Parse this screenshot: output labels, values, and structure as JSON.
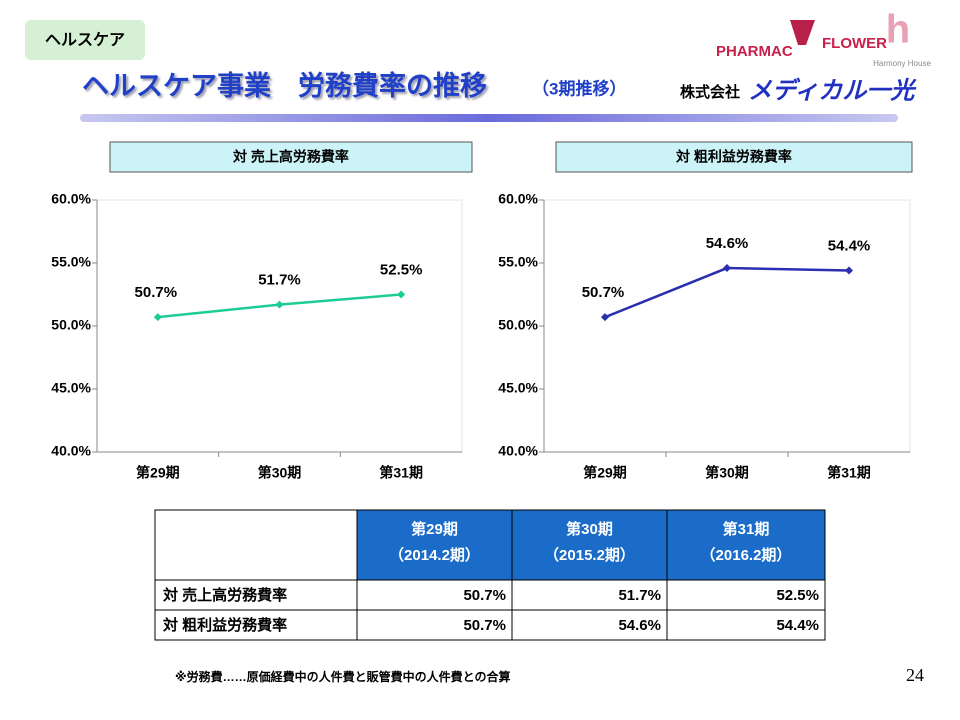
{
  "tag": "ヘルスケア",
  "title": "ヘルスケア事業　労務費率の推移",
  "title_sub": "（3期推移）",
  "logos": {
    "pharmac": "PHARMAC",
    "flower": "FLOWER",
    "harmony": "Harmony House",
    "company_prefix": "株式会社",
    "company_name": "メディカル一光"
  },
  "chart_data": [
    {
      "type": "line",
      "title": "対 売上高労務費率",
      "categories": [
        "第29期",
        "第30期",
        "第31期"
      ],
      "values": [
        50.7,
        51.7,
        52.5
      ],
      "value_labels": [
        "50.7%",
        "51.7%",
        "52.5%"
      ],
      "color": "#1ccc96",
      "ylim": [
        40,
        60
      ],
      "yticks": [
        {
          "value": 40,
          "label": "40.0%"
        },
        {
          "value": 45,
          "label": "45.0%"
        },
        {
          "value": 50,
          "label": "50.0%"
        },
        {
          "value": 55,
          "label": "55.0%"
        },
        {
          "value": 60,
          "label": "60.0%"
        }
      ],
      "grid": false
    },
    {
      "type": "line",
      "title": "対 粗利益労務費率",
      "categories": [
        "第29期",
        "第30期",
        "第31期"
      ],
      "values": [
        50.7,
        54.6,
        54.4
      ],
      "value_labels": [
        "50.7%",
        "54.6%",
        "54.4%"
      ],
      "color": "#2a2eb0",
      "ylim": [
        40,
        60
      ],
      "yticks": [
        {
          "value": 40,
          "label": "40.0%"
        },
        {
          "value": 45,
          "label": "45.0%"
        },
        {
          "value": 50,
          "label": "50.0%"
        },
        {
          "value": 55,
          "label": "55.0%"
        },
        {
          "value": 60,
          "label": "60.0%"
        }
      ],
      "grid": false
    }
  ],
  "table": {
    "columns": [
      {
        "period": "第29期",
        "term": "（2014.2期）"
      },
      {
        "period": "第30期",
        "term": "（2015.2期）"
      },
      {
        "period": "第31期",
        "term": "（2016.2期）"
      }
    ],
    "rows": [
      [
        "対 売上高労務費率",
        "50.7%",
        "51.7%",
        "52.5%"
      ],
      [
        "対 粗利益労務費率",
        "50.7%",
        "54.6%",
        "54.4%"
      ]
    ]
  },
  "note": "※労務費……原価経費中の人件費と販管費中の人件費との合算",
  "page_number": "24"
}
